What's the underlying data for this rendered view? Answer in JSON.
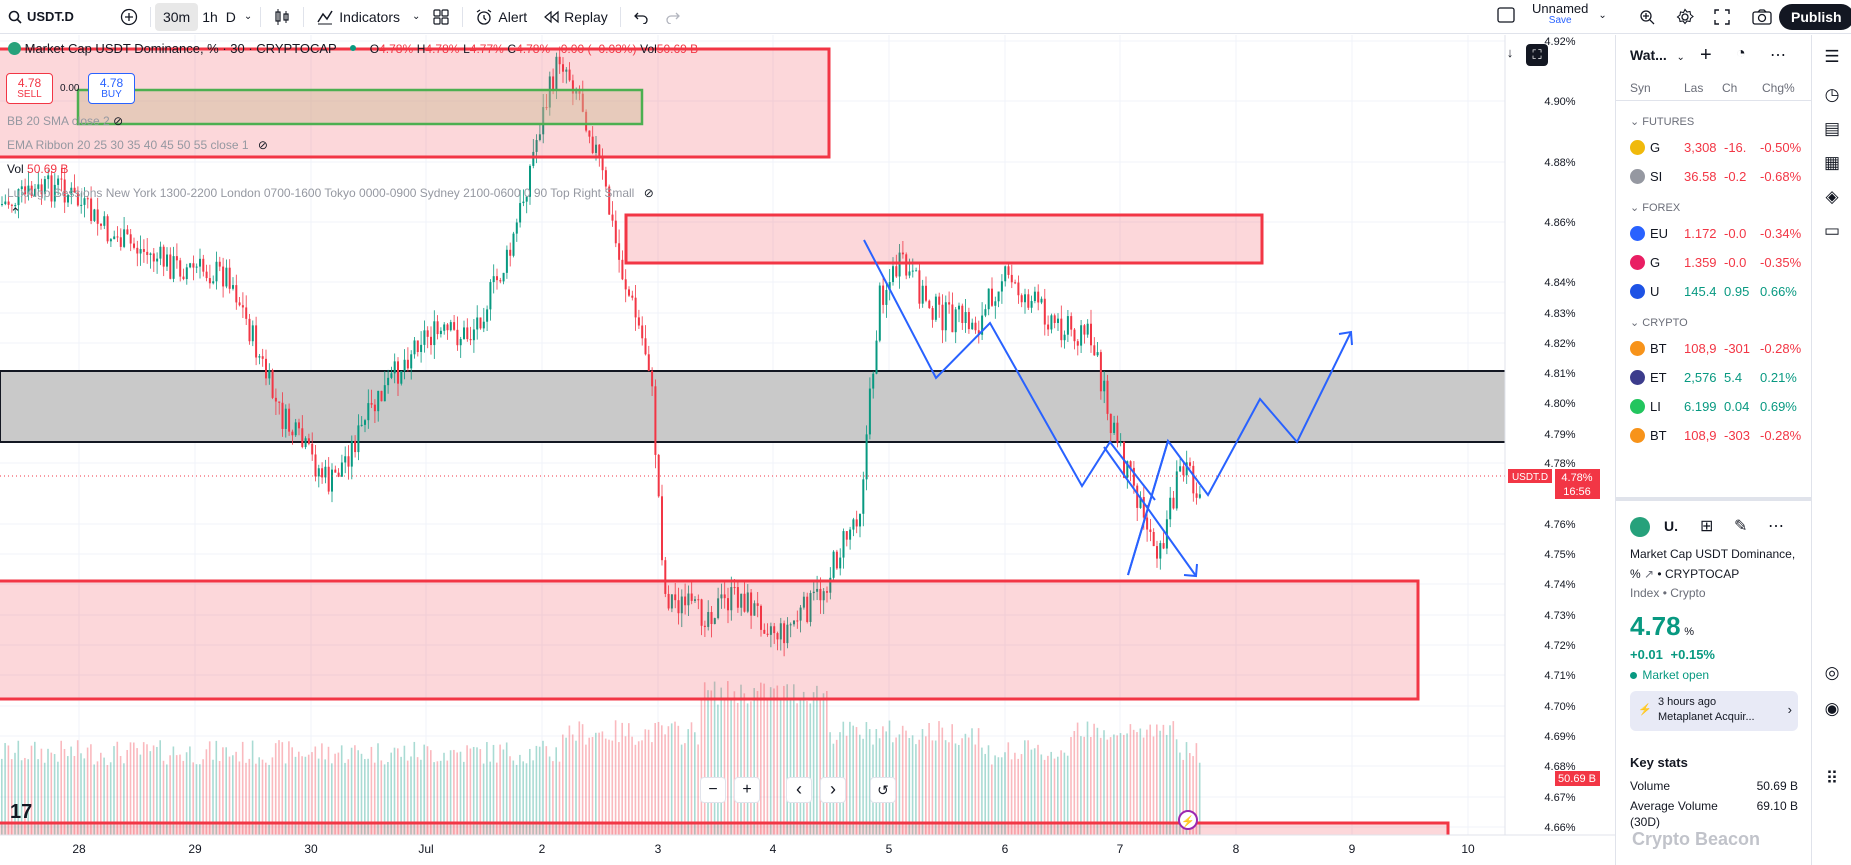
{
  "topbar": {
    "symbol": "USDT.D",
    "intervals": [
      "30m",
      "1h",
      "D"
    ],
    "indicators": "Indicators",
    "alert": "Alert",
    "replay": "Replay",
    "layout_name": "Unnamed",
    "layout_save": "Save",
    "publish": "Publish"
  },
  "legend": {
    "title": "Market Cap USDT Dominance, % · 30 · CRYPTOCAP",
    "o_label": "O",
    "o": "4.78%",
    "h_label": "H",
    "h": "4.78%",
    "l_label": "L",
    "l": "4.77%",
    "c_label": "C",
    "c": "4.78%",
    "change": "−0.00 (−0.03%)",
    "vol_label": "Vol",
    "vol": "50.69 B",
    "sell_price": "4.78",
    "sell_label": "SELL",
    "spread": "0.00",
    "buy_price": "4.78",
    "buy_label": "BUY"
  },
  "indicators": {
    "bb": "BB 20 SMA close 2",
    "ema": "EMA Ribbon 20 25 30 35 40 45 50 55 close 1",
    "vol_label": "Vol",
    "vol_value": "50.69 B",
    "sessions": "LuxAlgo Sessions New York 1300-2200 London 0700-1600 Tokyo 0000-0900 Sydney 2100-0600 0 90 Top Right Small"
  },
  "price_axis": {
    "labels": [
      "4.92%",
      "4.90%",
      "4.88%",
      "4.86%",
      "4.84%",
      "4.83%",
      "4.82%",
      "4.81%",
      "4.80%",
      "4.79%",
      "4.78%",
      "4.76%",
      "4.75%",
      "4.74%",
      "4.73%",
      "4.72%",
      "4.71%",
      "4.70%",
      "4.69%",
      "4.68%",
      "4.67%",
      "4.66%"
    ],
    "symbol_tag": "USDT.D",
    "current": "4.78%",
    "countdown": "16:56",
    "vol_tag": "50.69 B"
  },
  "time_axis": {
    "labels": [
      "28",
      "29",
      "30",
      "Jul",
      "2",
      "3",
      "4",
      "5",
      "6",
      "7",
      "8",
      "9",
      "10"
    ]
  },
  "watchlist": {
    "title": "Wat...",
    "columns": [
      "Syn",
      "Las",
      "Ch",
      "Chg%"
    ],
    "sections": [
      {
        "name": "FUTURES",
        "rows": [
          {
            "sym": "G",
            "last": "3,308",
            "chg": "-16.",
            "pct": "-0.50%",
            "color": "#f0b90b",
            "dir": "neg"
          },
          {
            "sym": "SI",
            "last": "36.58",
            "chg": "-0.2",
            "pct": "-0.68%",
            "color": "#9598a1",
            "dir": "neg"
          }
        ]
      },
      {
        "name": "FOREX",
        "rows": [
          {
            "sym": "EU",
            "last": "1.172",
            "chg": "-0.0",
            "pct": "-0.34%",
            "color": "#2962ff",
            "dir": "neg"
          },
          {
            "sym": "G",
            "last": "1.359",
            "chg": "-0.0",
            "pct": "-0.35%",
            "color": "#e91e63",
            "dir": "neg"
          },
          {
            "sym": "U",
            "last": "145.4",
            "chg": "0.95",
            "pct": "0.66%",
            "color": "#1e53e5",
            "dir": "pos"
          }
        ]
      },
      {
        "name": "CRYPTO",
        "rows": [
          {
            "sym": "BT",
            "last": "108,9",
            "chg": "-301",
            "pct": "-0.28%",
            "color": "#f7931a",
            "dir": "neg"
          },
          {
            "sym": "ET",
            "last": "2,576",
            "chg": "5.4",
            "pct": "0.21%",
            "color": "#3c3c8c",
            "dir": "pos"
          },
          {
            "sym": "LI",
            "last": "6.199",
            "chg": "0.04",
            "pct": "0.69%",
            "color": "#22c55e",
            "dir": "pos"
          },
          {
            "sym": "BT",
            "last": "108,9",
            "chg": "-303",
            "pct": "-0.28%",
            "color": "#f7931a",
            "dir": "neg"
          }
        ]
      }
    ]
  },
  "details": {
    "short": "U.",
    "name": "Market Cap USDT Dominance,",
    "name2": "%",
    "exchange": "CRYPTOCAP",
    "category": "Index • Crypto",
    "price": "4.78",
    "unit": "%",
    "change": "+0.01",
    "change_pct": "+0.15%",
    "status": "Market open",
    "news_time": "3 hours ago",
    "news_title": "Metaplanet Acquir...",
    "key_stats": "Key stats",
    "volume_label": "Volume",
    "volume_value": "50.69 B",
    "avg_label": "Average Volume",
    "avg_label2": "(30D)",
    "avg_value": "69.10 B"
  },
  "nav": {
    "zoom_out": "−",
    "zoom_in": "+",
    "prev": "‹",
    "next": "›",
    "reset": "↺"
  },
  "watermark": "Crypto Beacon"
}
